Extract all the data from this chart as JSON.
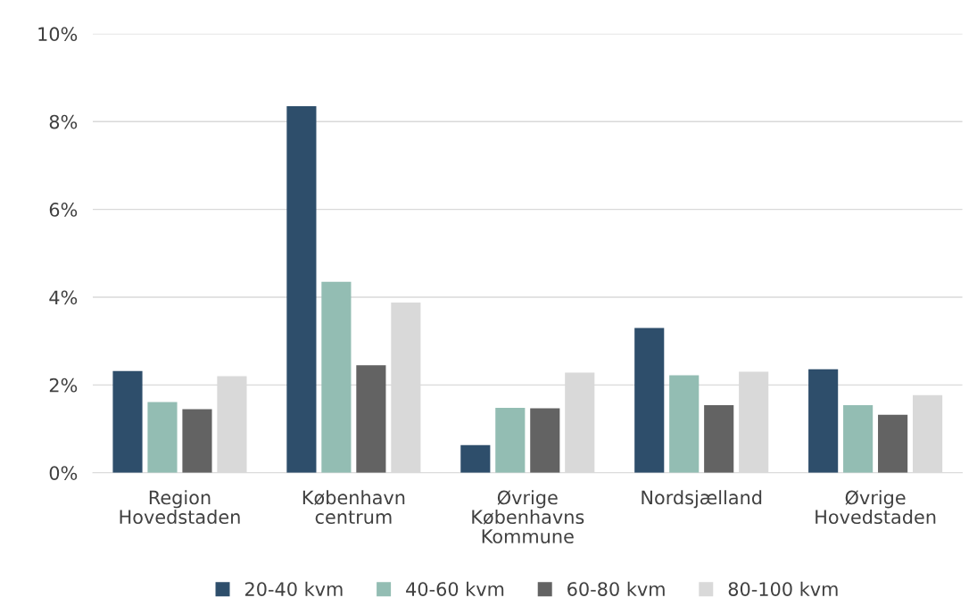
{
  "chart_data": {
    "type": "bar",
    "categories": [
      "Region\nHovedstaden",
      "København\ncentrum",
      "Øvrige\nKøbenhavns\nKommune",
      "Nordsjælland",
      "Øvrige\nHovedstaden"
    ],
    "series": [
      {
        "name": "20-40 kvm",
        "color": "#2e4e6b",
        "values": [
          2.32,
          8.35,
          0.63,
          3.3,
          2.36
        ]
      },
      {
        "name": "40-60 kvm",
        "color": "#93bdb3",
        "values": [
          1.61,
          4.35,
          1.48,
          2.22,
          1.54
        ]
      },
      {
        "name": "60-80 kvm",
        "color": "#636363",
        "values": [
          1.45,
          2.45,
          1.47,
          1.54,
          1.32
        ]
      },
      {
        "name": "80-100 kvm",
        "color": "#d9d9d9",
        "values": [
          2.2,
          3.88,
          2.28,
          2.3,
          1.77
        ]
      }
    ],
    "ylim": [
      0,
      10
    ],
    "yticks": [
      {
        "value": 0,
        "label": "0%"
      },
      {
        "value": 2,
        "label": "2%"
      },
      {
        "value": 4,
        "label": "4%"
      },
      {
        "value": 6,
        "label": "6%"
      },
      {
        "value": 8,
        "label": "8%"
      },
      {
        "value": 10,
        "label": "10%"
      }
    ],
    "grid": "y",
    "legend": "bottom"
  }
}
